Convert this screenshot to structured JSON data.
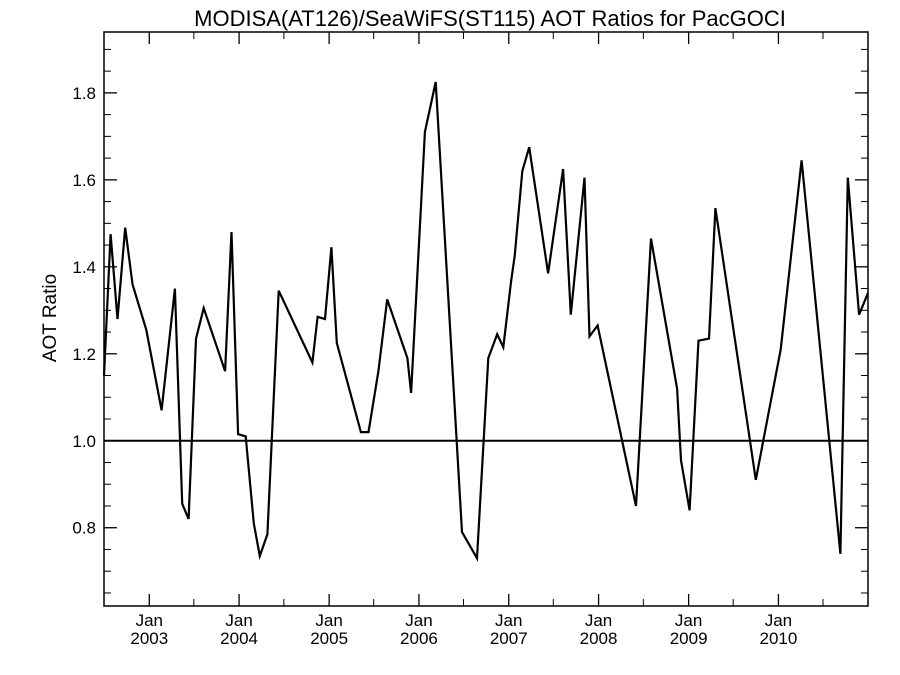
{
  "chart_data": {
    "type": "line",
    "title": "MODISA(AT126)/SeaWiFS(ST115)  AOT Ratios for PacGOCI",
    "ylabel": "AOT Ratio",
    "xlabel": "",
    "ylim": [
      0.62,
      1.94
    ],
    "xlim": [
      "2002-07-01",
      "2010-12-31"
    ],
    "reference_line": 1.0,
    "y_ticks": [
      0.8,
      1.0,
      1.2,
      1.4,
      1.6,
      1.8
    ],
    "y_tick_labels": [
      "0.8",
      "1.0",
      "1.2",
      "1.4",
      "1.6",
      "1.8"
    ],
    "x_ticks": [
      {
        "date": "2003-01-01",
        "month": "Jan",
        "year": "2003"
      },
      {
        "date": "2004-01-01",
        "month": "Jan",
        "year": "2004"
      },
      {
        "date": "2005-01-01",
        "month": "Jan",
        "year": "2005"
      },
      {
        "date": "2006-01-01",
        "month": "Jan",
        "year": "2006"
      },
      {
        "date": "2007-01-01",
        "month": "Jan",
        "year": "2007"
      },
      {
        "date": "2008-01-01",
        "month": "Jan",
        "year": "2008"
      },
      {
        "date": "2009-01-01",
        "month": "Jan",
        "year": "2009"
      },
      {
        "date": "2010-01-01",
        "month": "Jan",
        "year": "2010"
      }
    ],
    "series": [
      {
        "color": "#000000",
        "points": [
          [
            "2002-07-01",
            1.15
          ],
          [
            "2002-07-28",
            1.475
          ],
          [
            "2002-08-25",
            1.28
          ],
          [
            "2002-09-25",
            1.49
          ],
          [
            "2002-10-25",
            1.36
          ],
          [
            "2002-12-20",
            1.255
          ],
          [
            "2003-02-20",
            1.07
          ],
          [
            "2003-04-15",
            1.35
          ],
          [
            "2003-05-15",
            0.855
          ],
          [
            "2003-06-10",
            0.82
          ],
          [
            "2003-07-10",
            1.235
          ],
          [
            "2003-08-10",
            1.305
          ],
          [
            "2003-11-05",
            1.16
          ],
          [
            "2003-12-01",
            1.48
          ],
          [
            "2003-12-28",
            1.015
          ],
          [
            "2004-01-28",
            1.01
          ],
          [
            "2004-03-01",
            0.81
          ],
          [
            "2004-03-25",
            0.735
          ],
          [
            "2004-04-25",
            0.785
          ],
          [
            "2004-06-10",
            1.345
          ],
          [
            "2004-10-25",
            1.18
          ],
          [
            "2004-11-15",
            1.285
          ],
          [
            "2004-12-15",
            1.28
          ],
          [
            "2005-01-10",
            1.445
          ],
          [
            "2005-02-01",
            1.225
          ],
          [
            "2005-05-10",
            1.02
          ],
          [
            "2005-06-10",
            1.02
          ],
          [
            "2005-07-20",
            1.16
          ],
          [
            "2005-08-25",
            1.325
          ],
          [
            "2005-11-15",
            1.19
          ],
          [
            "2005-11-30",
            1.11
          ],
          [
            "2006-01-25",
            1.71
          ],
          [
            "2006-03-10",
            1.825
          ],
          [
            "2006-06-25",
            0.79
          ],
          [
            "2006-08-25",
            0.73
          ],
          [
            "2006-10-10",
            1.19
          ],
          [
            "2006-11-15",
            1.245
          ],
          [
            "2006-12-10",
            1.215
          ],
          [
            "2007-01-10",
            1.365
          ],
          [
            "2007-01-25",
            1.425
          ],
          [
            "2007-02-25",
            1.62
          ],
          [
            "2007-03-25",
            1.675
          ],
          [
            "2007-06-10",
            1.385
          ],
          [
            "2007-08-10",
            1.625
          ],
          [
            "2007-09-10",
            1.29
          ],
          [
            "2007-11-05",
            1.605
          ],
          [
            "2007-11-25",
            1.24
          ],
          [
            "2007-12-28",
            1.265
          ],
          [
            "2008-06-01",
            0.85
          ],
          [
            "2008-08-01",
            1.465
          ],
          [
            "2008-11-15",
            1.12
          ],
          [
            "2008-12-01",
            0.955
          ],
          [
            "2009-01-05",
            0.84
          ],
          [
            "2009-02-10",
            1.23
          ],
          [
            "2009-03-25",
            1.235
          ],
          [
            "2009-04-20",
            1.535
          ],
          [
            "2009-10-01",
            0.91
          ],
          [
            "2010-01-10",
            1.21
          ],
          [
            "2010-04-05",
            1.645
          ],
          [
            "2010-09-10",
            0.74
          ],
          [
            "2010-10-10",
            1.605
          ],
          [
            "2010-11-25",
            1.29
          ],
          [
            "2010-12-31",
            1.34
          ]
        ]
      }
    ]
  }
}
